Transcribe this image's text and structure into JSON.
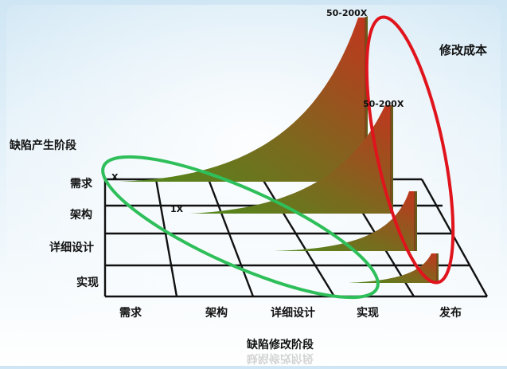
{
  "title_cost": "修改成本",
  "title_stage": "缺陷产生阶段",
  "title_fix_stage": "缺陷修改阶段",
  "row_labels": [
    "需求",
    "架构",
    "详细设计",
    "实现"
  ],
  "col_labels": [
    "需求",
    "架构",
    "详细设计",
    "实现",
    "发布"
  ],
  "peak_labels": {
    "base_row1": "X",
    "base_row2": "1X",
    "peak_row1": "50-200X",
    "peak_row2": "50-200X"
  },
  "colors": {
    "curve_top": "#b5361e",
    "curve_mid": "#8a5a1e",
    "curve_low": "#4f8a1c",
    "ellipse_red": "#e0141c",
    "ellipse_green": "#2fbf5a",
    "grid": "#111111"
  }
}
